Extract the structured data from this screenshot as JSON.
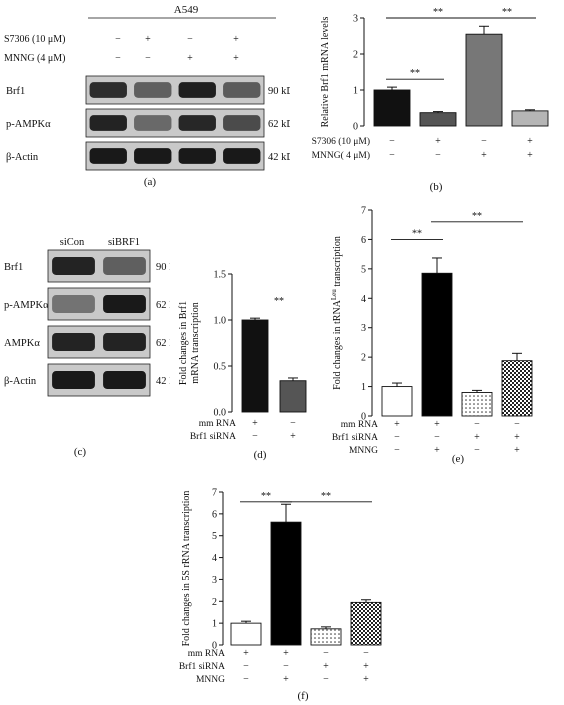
{
  "panel_a": {
    "header": "A549",
    "rows": [
      {
        "label": "S7306 (10 μM)",
        "signs": [
          "−",
          "+",
          "−",
          "+"
        ]
      },
      {
        "label": "MNNG (4 μM)",
        "signs": [
          "−",
          "−",
          "+",
          "+"
        ]
      }
    ],
    "blots": [
      {
        "name": "Brf1",
        "size": "90 kD",
        "intensity": [
          0.85,
          0.6,
          0.92,
          0.62
        ]
      },
      {
        "name": "p-AMPKα",
        "size": "62 kD",
        "intensity": [
          0.9,
          0.55,
          0.88,
          0.7
        ]
      },
      {
        "name": "β-Actin",
        "size": "42 kD",
        "intensity": [
          0.95,
          0.95,
          0.95,
          0.95
        ]
      }
    ],
    "caption": "(a)"
  },
  "panel_c": {
    "lanes": [
      "siCon",
      "siBRF1"
    ],
    "blots": [
      {
        "name": "Brf1",
        "size": "90 kD",
        "intensity": [
          0.9,
          0.6
        ]
      },
      {
        "name": "p-AMPKα",
        "size": "62 kD",
        "intensity": [
          0.5,
          0.95
        ]
      },
      {
        "name": "AMPKα",
        "size": "62 kD",
        "intensity": [
          0.9,
          0.9
        ]
      },
      {
        "name": "β-Actin",
        "size": "42 kD",
        "intensity": [
          0.95,
          0.95
        ]
      }
    ],
    "caption": "(c)"
  },
  "chart_data": [
    {
      "id": "b",
      "type": "bar",
      "caption": "(b)",
      "ylabel": "Relative Brf1 mRNA levels",
      "ylim": [
        0,
        3
      ],
      "yticks": [
        "0",
        "1",
        "2",
        "3"
      ],
      "values": [
        1.0,
        0.37,
        2.55,
        0.42
      ],
      "errors": [
        0.08,
        0.03,
        0.22,
        0.03
      ],
      "colors": [
        "#111111",
        "#555555",
        "#777777",
        "#b5b5b5"
      ],
      "rows": [
        {
          "label": "S7306 (10 μM)",
          "signs": [
            "−",
            "+",
            "−",
            "+"
          ]
        },
        {
          "label": "MNNG( 4 μM)",
          "signs": [
            "−",
            "−",
            "+",
            "+"
          ]
        }
      ],
      "significance": [
        "**",
        "**",
        "**"
      ]
    },
    {
      "id": "d",
      "type": "bar",
      "caption": "(d)",
      "ylabel": [
        "Fold changes in Brf1",
        "mRNA transcription"
      ],
      "ylim": [
        0,
        1.5
      ],
      "yticks": [
        "0.0",
        "0.5",
        "1.0",
        "1.5"
      ],
      "values": [
        1.0,
        0.34
      ],
      "errors": [
        0.02,
        0.03
      ],
      "colors": [
        "#111111",
        "#555555"
      ],
      "rows": [
        {
          "label": "mm RNA",
          "signs": [
            "+",
            "−"
          ]
        },
        {
          "label": "Brf1 siRNA",
          "signs": [
            "−",
            "+"
          ]
        }
      ],
      "significance": [
        "**"
      ]
    },
    {
      "id": "e",
      "type": "bar",
      "caption": "(e)",
      "ylabel": "Fold changes in tRNA^Leu transcription",
      "ylim": [
        0,
        7
      ],
      "yticks": [
        "0",
        "1",
        "2",
        "3",
        "4",
        "5",
        "6",
        "7"
      ],
      "values": [
        1.0,
        4.85,
        0.8,
        1.88
      ],
      "errors": [
        0.12,
        0.52,
        0.07,
        0.25
      ],
      "fills": [
        "white",
        "black",
        "dots",
        "check"
      ],
      "rows": [
        {
          "label": "mm RNA",
          "signs": [
            "+",
            "+",
            "−",
            "−"
          ]
        },
        {
          "label": "Brf1 siRNA",
          "signs": [
            "−",
            "−",
            "+",
            "+"
          ]
        },
        {
          "label": "MNNG",
          "signs": [
            "−",
            "+",
            "−",
            "+"
          ]
        }
      ],
      "significance": [
        "**",
        "**"
      ]
    },
    {
      "id": "f",
      "type": "bar",
      "caption": "(f)",
      "ylabel": "Fold changes in 5S rRNA transcription",
      "ylim": [
        0,
        7
      ],
      "yticks": [
        "0",
        "1",
        "2",
        "3",
        "4",
        "5",
        "6",
        "7"
      ],
      "values": [
        1.0,
        5.62,
        0.74,
        1.95
      ],
      "errors": [
        0.09,
        0.82,
        0.09,
        0.12
      ],
      "fills": [
        "white",
        "black",
        "dots",
        "check"
      ],
      "rows": [
        {
          "label": "mm RNA",
          "signs": [
            "+",
            "+",
            "−",
            "−"
          ]
        },
        {
          "label": "Brf1 siRNA",
          "signs": [
            "−",
            "−",
            "+",
            "+"
          ]
        },
        {
          "label": "MNNG",
          "signs": [
            "−",
            "+",
            "−",
            "+"
          ]
        }
      ],
      "significance": [
        "**",
        "**"
      ]
    }
  ]
}
